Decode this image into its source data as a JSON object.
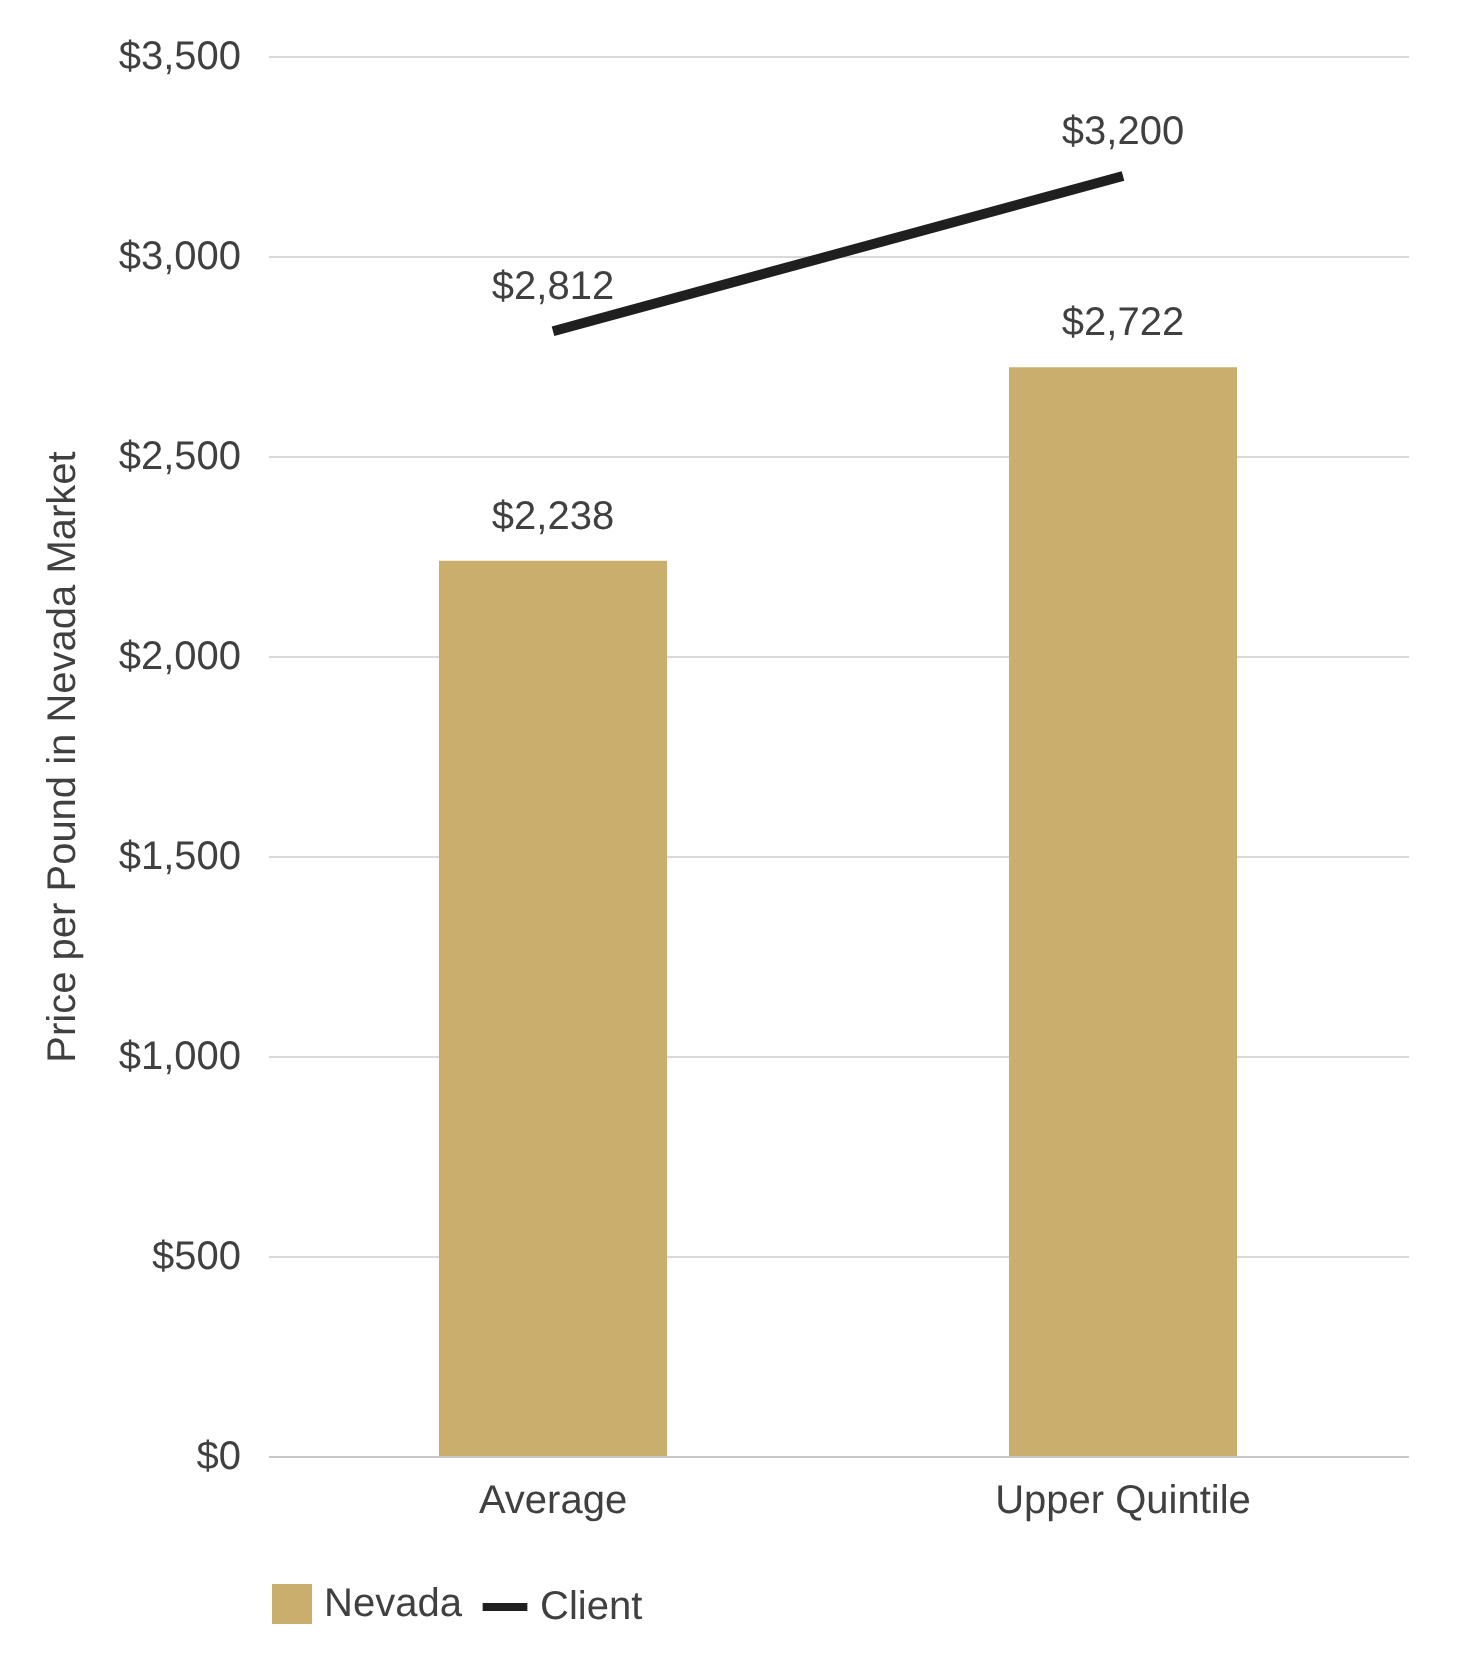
{
  "chart_data": {
    "type": "bar",
    "ylabel": "Price per Pound in Nevada Market",
    "categories": [
      "Average",
      "Upper Quintile"
    ],
    "series": [
      {
        "name": "Nevada",
        "color": "#c9ae6e",
        "values": [
          2238,
          2722
        ],
        "value_labels": [
          "$2,238",
          "$2,722"
        ]
      },
      {
        "name": "Client",
        "type": "line",
        "color": "#1f1f1f",
        "values": [
          2812,
          3200
        ],
        "value_labels": [
          "$2,812",
          "$3,200"
        ]
      }
    ],
    "ylim": [
      0,
      3500
    ],
    "yticks": [
      {
        "value": 0,
        "label": "$0"
      },
      {
        "value": 500,
        "label": "$500"
      },
      {
        "value": 1000,
        "label": "$1,000"
      },
      {
        "value": 1500,
        "label": "$1,500"
      },
      {
        "value": 2000,
        "label": "$2,000"
      },
      {
        "value": 2500,
        "label": "$2,500"
      },
      {
        "value": 3000,
        "label": "$3,000"
      },
      {
        "value": 3500,
        "label": "$3,500"
      }
    ],
    "grid": "y",
    "legend": "bottom"
  }
}
